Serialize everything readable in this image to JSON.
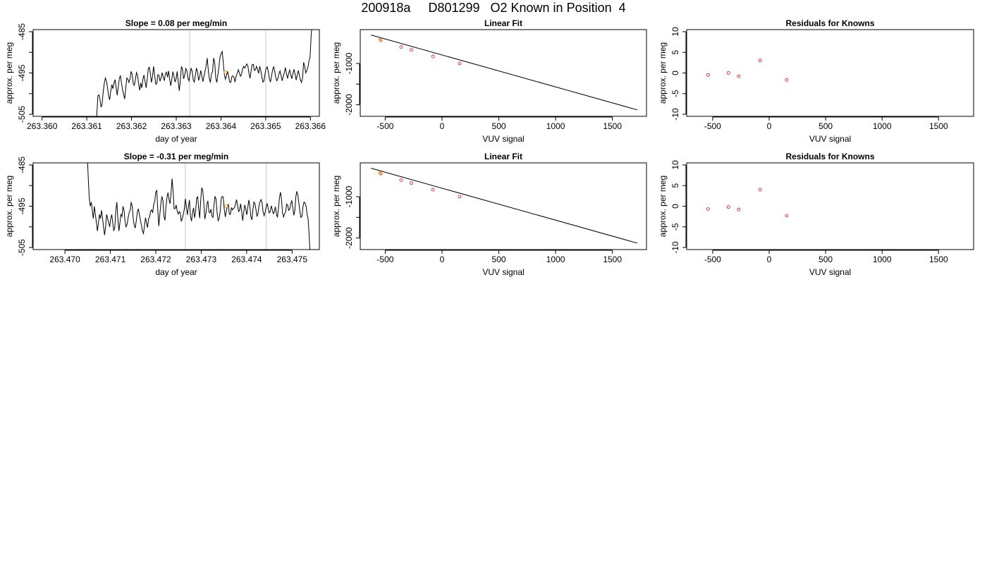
{
  "figure": {
    "title": "200918a     D801299   O2 Known in Position  4"
  },
  "chart_data": [
    {
      "type": "line",
      "title": "Slope =  0.08  per meg/min",
      "xlabel": "day of year",
      "ylabel": "approx. per meg",
      "xlim": [
        263.3598,
        263.3662
      ],
      "ylim": [
        -505.5,
        -484.5
      ],
      "xticks": [
        "263.360",
        "263.361",
        "263.362",
        "263.363",
        "263.364",
        "263.365",
        "263.366"
      ],
      "xtick_values": [
        263.36,
        263.361,
        263.362,
        263.363,
        263.364,
        263.365,
        263.366
      ],
      "yticks": [
        "-485",
        "-495",
        "-505"
      ],
      "ytick_values": [
        -485,
        -495,
        -505
      ],
      "yminor_ticks": [
        -490,
        -500
      ],
      "vlines": [
        263.3633,
        263.365
      ],
      "vline_color": "#c8c8c8",
      "marker": {
        "x": 263.3641,
        "y": -494.8,
        "color": "#ffa500"
      },
      "series_color": "#000000",
      "x_start": 263.3612,
      "x_end": 263.36604,
      "y": [
        -512,
        -505,
        -500.5,
        -500.3,
        -501.5,
        -503.3,
        -502.4,
        -499.5,
        -497.4,
        -496.2,
        -497,
        -498.5,
        -500.6,
        -501.5,
        -499.4,
        -497.8,
        -498.8,
        -497.5,
        -496.6,
        -498.4,
        -500.4,
        -498.4,
        -496.4,
        -495.6,
        -497.4,
        -499,
        -500.2,
        -501.3,
        -498.7,
        -496.2,
        -496.5,
        -497.3,
        -496.4,
        -494.6,
        -495.4,
        -497.6,
        -498,
        -496.6,
        -494.9,
        -495.6,
        -497.6,
        -499.2,
        -497.4,
        -498.6,
        -496.6,
        -495.5,
        -497,
        -498.6,
        -496.6,
        -494,
        -493.6,
        -495.2,
        -497.3,
        -495.8,
        -493.4,
        -495.6,
        -497.7,
        -497.6,
        -495.4,
        -495.6,
        -497,
        -496.2,
        -494.9,
        -496.1,
        -496.8,
        -495.2,
        -494.8,
        -496,
        -494.5,
        -496.5,
        -498.1,
        -496.5,
        -494.7,
        -495.8,
        -497.2,
        -496.4,
        -494.6,
        -497.3,
        -499.3,
        -496.5,
        -493.4,
        -494.2,
        -496.4,
        -495.6,
        -493.9,
        -494.4,
        -496.2,
        -496.9,
        -495.2,
        -493.8,
        -494.6,
        -496.7,
        -497.2,
        -495.5,
        -493.8,
        -494.8,
        -496.8,
        -495.9,
        -494.4,
        -495.7,
        -497.1,
        -495.8,
        -494.6,
        -493.3,
        -491.4,
        -494.2,
        -496.4,
        -497.3,
        -495.2,
        -494.7,
        -491.4,
        -492.4,
        -496.2,
        -497.3,
        -495.4,
        -493.4,
        -491.1,
        -490.3,
        -489.8,
        -492.4,
        -495.4,
        -496.5,
        -495.6,
        -494.6,
        -495.8,
        -497.2,
        -497.3,
        -495.9,
        -495.7,
        -496.1,
        -497.2,
        -495.8,
        -495.1,
        -494.2,
        -494.9,
        -495.8,
        -495.4,
        -494.1,
        -493.4,
        -493.8,
        -493.3,
        -492.8,
        -493.4,
        -495.1,
        -496.3,
        -494.4,
        -493,
        -492.9,
        -494.4,
        -494.2,
        -493.4,
        -494.2,
        -495.1,
        -493.4,
        -494.3,
        -495.9,
        -497.2,
        -496.9,
        -495.2,
        -493.9,
        -493.5,
        -494.6,
        -496.3,
        -497.2,
        -495.8,
        -494.3,
        -493.5,
        -494.6,
        -496.1,
        -496.9,
        -496.3,
        -495.2,
        -494.5,
        -495.7,
        -496.9,
        -495.8,
        -494.9,
        -493.7,
        -495.2,
        -496.3,
        -495.1,
        -494.3,
        -495.5,
        -496.4,
        -495.1,
        -494.1,
        -495.3,
        -496.7,
        -495.6,
        -494.4,
        -495.5,
        -496.7,
        -497.3,
        -496.2,
        -492.4,
        -493.4,
        -495,
        -494.4,
        -493.6,
        -492.1,
        -491.1,
        -486,
        -483
      ]
    },
    {
      "type": "line",
      "title": "Linear Fit",
      "xlabel": "VUV signal",
      "ylabel": "approx. per meg",
      "xlim": [
        -720,
        1800
      ],
      "ylim": [
        -2280,
        -180
      ],
      "xticks": [
        "-500",
        "0",
        "500",
        "1000",
        "1500"
      ],
      "xtick_values": [
        -500,
        0,
        500,
        1000,
        1500
      ],
      "yticks": [
        "-1000",
        "-2000"
      ],
      "ytick_values": [
        -1000,
        -2000
      ],
      "yminor_ticks": [
        -1500
      ],
      "fit_line": {
        "x": [
          -625,
          1720
        ],
        "y": [
          -310,
          -2125
        ],
        "color": "#000000"
      },
      "points": {
        "x": [
          -540,
          -360,
          -270,
          -80,
          155
        ],
        "y": [
          -440,
          -600,
          -670,
          -830,
          -1000
        ],
        "color": "#ff0000"
      },
      "marker": {
        "x": -545,
        "y": -430,
        "color": "#ffa500"
      }
    },
    {
      "type": "scatter",
      "title": "Residuals for Knowns",
      "xlabel": "VUV signal",
      "ylabel": "approx. per meg",
      "xlim": [
        -730,
        1810
      ],
      "ylim": [
        -10.5,
        10.5
      ],
      "xticks": [
        "-500",
        "0",
        "500",
        "1000",
        "1500"
      ],
      "xtick_values": [
        -500,
        0,
        500,
        1000,
        1500
      ],
      "yticks": [
        "-10",
        "-5",
        "0",
        "5",
        "10"
      ],
      "ytick_values": [
        -10,
        -5,
        0,
        5,
        10
      ],
      "points": {
        "x": [
          -540,
          -360,
          -270,
          -80,
          155
        ],
        "y": [
          -0.5,
          0,
          -0.8,
          3,
          -1.7
        ],
        "color": "#ff0000"
      }
    },
    {
      "type": "line",
      "title": "Slope =  -0.31  per meg/min",
      "xlabel": "day of year",
      "ylabel": "approx. per meg",
      "xlim": [
        263.4693,
        263.4756
      ],
      "ylim": [
        -505.5,
        -484.5
      ],
      "xticks": [
        "263.470",
        "263.471",
        "263.472",
        "263.473",
        "263.474",
        "263.475"
      ],
      "xtick_values": [
        263.47,
        263.471,
        263.472,
        263.473,
        263.474,
        263.475
      ],
      "yticks": [
        "-485",
        "-495",
        "-505"
      ],
      "ytick_values": [
        -485,
        -495,
        -505
      ],
      "yminor_ticks": [
        -490,
        -500
      ],
      "vlines": [
        263.47265,
        263.47443
      ],
      "vline_color": "#c8c8c8",
      "marker": {
        "x": 263.47355,
        "y": -495,
        "color": "#ffa500"
      },
      "series_color": "#000000",
      "x_start": 263.47049,
      "x_end": 263.47542,
      "y": [
        -482,
        -488,
        -493,
        -495,
        -494,
        -496,
        -498,
        -495,
        -497,
        -499,
        -501,
        -499,
        -497,
        -498,
        -496,
        -498,
        -500,
        -502,
        -500,
        -497,
        -498,
        -499,
        -500,
        -498,
        -497,
        -499,
        -501,
        -500,
        -496,
        -494,
        -498,
        -501,
        -499,
        -497,
        -497.5,
        -495,
        -496,
        -498.6,
        -500,
        -499.4,
        -497.8,
        -496.6,
        -496,
        -494,
        -495,
        -498,
        -499.6,
        -500.3,
        -498.5,
        -496.4,
        -495.6,
        -497,
        -498.4,
        -499.6,
        -501,
        -501.6,
        -499.8,
        -497.8,
        -499,
        -500.2,
        -498,
        -497.7,
        -496.2,
        -495.9,
        -496.6,
        -494.6,
        -493.9,
        -491.6,
        -491.2,
        -495.7,
        -499.8,
        -497,
        -494.5,
        -492.6,
        -493.6,
        -497.3,
        -498.4,
        -495.2,
        -492.9,
        -491.7,
        -493.4,
        -494.4,
        -491.8,
        -488.3,
        -491.5,
        -495.6,
        -495.6,
        -494.7,
        -496.2,
        -496.9,
        -496.3,
        -496.6,
        -498.7,
        -498,
        -496.9,
        -495.6,
        -493.2,
        -495.2,
        -497.1,
        -495.1,
        -493.5,
        -497.5,
        -498.6,
        -496.6,
        -495.4,
        -497.8,
        -496.3,
        -493,
        -492.7,
        -495.5,
        -497.9,
        -493.5,
        -490.5,
        -491.2,
        -494.1,
        -498.1,
        -496.8,
        -494.6,
        -493.7,
        -496.4,
        -496.6,
        -495.7,
        -497.4,
        -497.7,
        -494.6,
        -492.6,
        -493.3,
        -496.5,
        -498.5,
        -498,
        -496.3,
        -493.2,
        -492.6,
        -492.8,
        -495.7,
        -497.6,
        -496.2,
        -495.1,
        -494.6,
        -496.9,
        -497,
        -495.4,
        -495.9,
        -495.5,
        -495.4,
        -494.5,
        -493.4,
        -494.7,
        -496.3,
        -496,
        -494.4,
        -496.2,
        -498.5,
        -496.6,
        -494.7,
        -495.6,
        -497.1,
        -495.4,
        -493.5,
        -494.9,
        -497.5,
        -498.3,
        -495.9,
        -494,
        -494.4,
        -495.8,
        -497.5,
        -496.7,
        -495,
        -493.9,
        -493.4,
        -494.2,
        -496.4,
        -497.3,
        -496.4,
        -495.2,
        -494.3,
        -495.6,
        -496.6,
        -496.3,
        -494.9,
        -495.9,
        -496.8,
        -496.3,
        -495.1,
        -496.9,
        -497.7,
        -495.5,
        -492.9,
        -491.6,
        -493.4,
        -496.7,
        -497.6,
        -496.8,
        -496.4,
        -494.5,
        -494.7,
        -496,
        -495.7,
        -494.5,
        -493.6,
        -495.2,
        -497.2,
        -496.1,
        -492.7,
        -491.4,
        -492.4,
        -494.3,
        -496.4,
        -497.7,
        -497.4,
        -495,
        -494,
        -494.2,
        -495,
        -497,
        -498,
        -502,
        -507,
        -509
      ]
    },
    {
      "type": "line",
      "title": "Linear Fit",
      "xlabel": "VUV signal",
      "ylabel": "approx. per meg",
      "xlim": [
        -720,
        1800
      ],
      "ylim": [
        -2280,
        -180
      ],
      "xticks": [
        "-500",
        "0",
        "500",
        "1000",
        "1500"
      ],
      "xtick_values": [
        -500,
        0,
        500,
        1000,
        1500
      ],
      "yticks": [
        "-1000",
        "-2000"
      ],
      "ytick_values": [
        -1000,
        -2000
      ],
      "yminor_ticks": [
        -1500
      ],
      "fit_line": {
        "x": [
          -625,
          1720
        ],
        "y": [
          -310,
          -2125
        ],
        "color": "#000000"
      },
      "points": {
        "x": [
          -540,
          -360,
          -270,
          -80,
          155
        ],
        "y": [
          -440,
          -600,
          -670,
          -830,
          -1000
        ],
        "color": "#ff0000"
      },
      "marker": {
        "x": -545,
        "y": -430,
        "color": "#ffa500"
      }
    },
    {
      "type": "scatter",
      "title": "Residuals for Knowns",
      "xlabel": "VUV signal",
      "ylabel": "approx. per meg",
      "xlim": [
        -730,
        1810
      ],
      "ylim": [
        -10.5,
        10.5
      ],
      "xticks": [
        "-500",
        "0",
        "500",
        "1000",
        "1500"
      ],
      "xtick_values": [
        -500,
        0,
        500,
        1000,
        1500
      ],
      "yticks": [
        "-10",
        "-5",
        "0",
        "5",
        "10"
      ],
      "ytick_values": [
        -10,
        -5,
        0,
        5,
        10
      ],
      "points": {
        "x": [
          -540,
          -360,
          -270,
          -80,
          155
        ],
        "y": [
          -0.7,
          -0.2,
          -0.8,
          4,
          -2.3
        ],
        "color": "#ff0000"
      }
    }
  ]
}
